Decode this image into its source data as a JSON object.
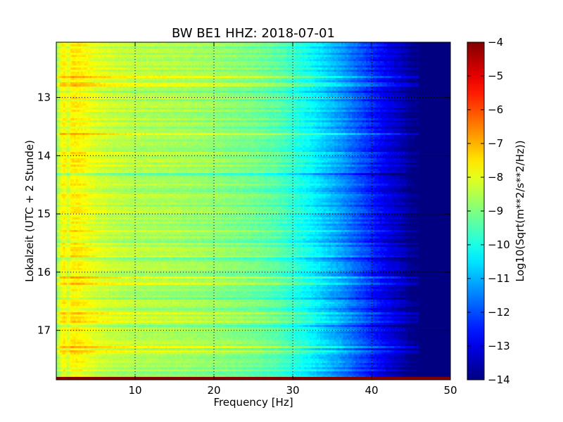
{
  "chart_data": {
    "type": "heatmap",
    "title": "BW BE1 HHZ: 2018-07-01",
    "xlabel": "Frequency [Hz]",
    "ylabel": "Lokalzeit (UTC + 2 Stunde)",
    "colorbar_label": "Log10(Sqrt(m**2/s**2/Hz))",
    "colormap": "jet",
    "grid": true,
    "xlim": [
      0,
      50
    ],
    "ylim": [
      17.85,
      12.05
    ],
    "clim": [
      -14,
      -4
    ],
    "x_ticks": [
      10,
      20,
      30,
      40,
      50
    ],
    "x_tick_labels": [
      "10",
      "20",
      "30",
      "40",
      "50"
    ],
    "y_ticks": [
      13,
      14,
      15,
      16,
      17
    ],
    "y_tick_labels": [
      "13",
      "14",
      "15",
      "16",
      "17"
    ],
    "colorbar_ticks": [
      -4,
      -5,
      -6,
      -7,
      -8,
      -9,
      -10,
      -11,
      -12,
      -13,
      -14
    ],
    "colorbar_tick_labels": [
      "−4",
      "−5",
      "−6",
      "−7",
      "−8",
      "−9",
      "−10",
      "−11",
      "−12",
      "−13",
      "−14"
    ],
    "spectral_profile": {
      "frequency_hz": [
        0,
        0.5,
        1,
        1.5,
        2,
        3,
        4,
        5,
        7,
        10,
        15,
        20,
        25,
        28,
        30,
        32,
        34,
        36,
        38,
        40,
        42,
        44,
        45,
        46,
        50
      ],
      "log10_amplitude": [
        -9.0,
        -8.0,
        -7.7,
        -8.2,
        -7.6,
        -7.7,
        -7.9,
        -8.1,
        -8.3,
        -8.5,
        -8.6,
        -8.8,
        -9.1,
        -9.4,
        -9.8,
        -10.2,
        -10.7,
        -11.2,
        -11.8,
        -12.4,
        -13.0,
        -13.5,
        -13.9,
        -14.0,
        -14.0
      ]
    },
    "band_at_bottom": {
      "time_from": 17.8,
      "time_to": 17.85,
      "log10_amplitude": -4
    }
  }
}
